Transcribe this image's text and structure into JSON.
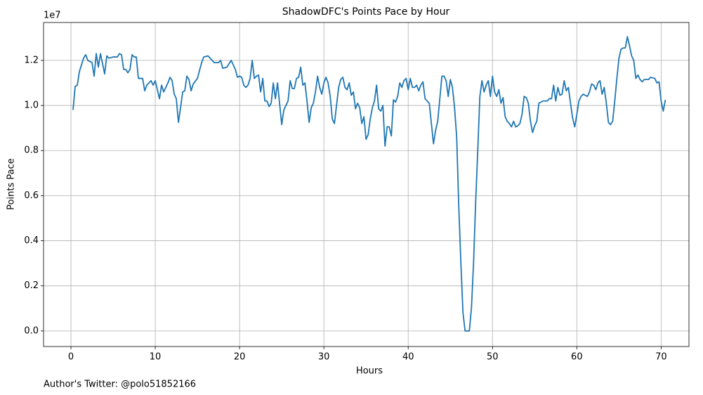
{
  "chart_data": {
    "type": "line",
    "title": "ShadowDFC's Points Pace by Hour",
    "xlabel": "Hours",
    "ylabel": "Points Pace",
    "y_offset_label": "1e7",
    "footnote": "Author's Twitter: @polo51852166",
    "color": "#1f77b4",
    "grid": true,
    "xlim": [
      -3.25,
      73.3
    ],
    "ylim": [
      -0.069,
      1.368
    ],
    "xticks": [
      0,
      10,
      20,
      30,
      40,
      50,
      60,
      70
    ],
    "yticks": [
      {
        "value": 0,
        "label": "0.0"
      },
      0.2,
      0.4,
      0.6,
      0.8,
      {
        "value": 1,
        "label": "1.0"
      },
      1.2
    ],
    "x": [
      0.25,
      0.5,
      0.75,
      1,
      1.5,
      1.75,
      2,
      2.5,
      2.75,
      3,
      3.25,
      3.5,
      4,
      4.25,
      4.5,
      5,
      5.5,
      5.75,
      6,
      6.25,
      6.5,
      6.75,
      7,
      7.25,
      7.5,
      7.75,
      8,
      8.5,
      8.75,
      9,
      9.5,
      9.75,
      10,
      10.5,
      10.75,
      11,
      11.5,
      11.75,
      12,
      12.25,
      12.5,
      12.75,
      13,
      13.25,
      13.5,
      13.75,
      14,
      14.25,
      14.5,
      15,
      15.5,
      15.75,
      16.25,
      16.75,
      17,
      17.5,
      17.75,
      18,
      18.5,
      19,
      19.5,
      19.75,
      20,
      20.25,
      20.5,
      20.75,
      21,
      21.25,
      21.5,
      21.75,
      22,
      22.25,
      22.5,
      22.75,
      23,
      23.25,
      23.5,
      23.75,
      24,
      24.25,
      24.5,
      25,
      25.25,
      25.5,
      25.75,
      26,
      26.25,
      26.5,
      26.75,
      27,
      27.25,
      27.5,
      27.75,
      28,
      28.25,
      28.5,
      28.75,
      29,
      29.25,
      29.5,
      29.75,
      30,
      30.25,
      30.5,
      30.75,
      31,
      31.25,
      31.5,
      31.75,
      32,
      32.25,
      32.5,
      32.75,
      33,
      33.25,
      33.5,
      33.75,
      34,
      34.25,
      34.5,
      34.75,
      35,
      35.25,
      35.5,
      35.75,
      36,
      36.25,
      36.5,
      36.75,
      37,
      37.25,
      37.5,
      37.75,
      38,
      38.25,
      38.5,
      38.75,
      39,
      39.25,
      39.5,
      39.75,
      40,
      40.25,
      40.5,
      40.75,
      41,
      41.25,
      41.5,
      41.75,
      42,
      42.5,
      42.75,
      43,
      43.25,
      43.5,
      43.75,
      44,
      44.25,
      44.5,
      44.75,
      45,
      45.25,
      45.5,
      45.75,
      46,
      46.25,
      46.5,
      46.75,
      47,
      47.25,
      47.5,
      47.75,
      48,
      48.25,
      48.5,
      48.75,
      49,
      49.25,
      49.5,
      49.75,
      50,
      50.25,
      50.5,
      50.75,
      51,
      51.25,
      51.5,
      51.75,
      52,
      52.25,
      52.5,
      52.75,
      53,
      53.25,
      53.5,
      53.75,
      54,
      54.25,
      54.5,
      54.75,
      55,
      55.25,
      55.5,
      55.75,
      56,
      56.5,
      56.75,
      57,
      57.25,
      57.5,
      57.75,
      58,
      58.25,
      58.5,
      58.75,
      59,
      59.25,
      59.5,
      59.75,
      60,
      60.25,
      60.5,
      60.75,
      61,
      61.25,
      61.5,
      61.75,
      62,
      62.25,
      62.5,
      62.75,
      63,
      63.25,
      63.5,
      63.75,
      64,
      64.25,
      64.5,
      64.75,
      65,
      65.25,
      65.5,
      65.75,
      66,
      66.25,
      66.5,
      66.75,
      67,
      67.25,
      67.5,
      67.75,
      68,
      68.5,
      68.75,
      69.25,
      69.5,
      69.75,
      70,
      70.25,
      70.5
    ],
    "values": [
      0.98,
      1.085,
      1.09,
      1.15,
      1.21,
      1.225,
      1.2,
      1.19,
      1.13,
      1.23,
      1.17,
      1.23,
      1.14,
      1.22,
      1.21,
      1.215,
      1.215,
      1.23,
      1.225,
      1.16,
      1.16,
      1.145,
      1.16,
      1.225,
      1.215,
      1.215,
      1.12,
      1.12,
      1.065,
      1.09,
      1.11,
      1.09,
      1.11,
      1.03,
      1.09,
      1.06,
      1.1,
      1.125,
      1.11,
      1.05,
      1.03,
      0.925,
      0.99,
      1.06,
      1.065,
      1.13,
      1.115,
      1.065,
      1.095,
      1.12,
      1.19,
      1.215,
      1.22,
      1.2,
      1.19,
      1.19,
      1.2,
      1.165,
      1.17,
      1.2,
      1.16,
      1.125,
      1.13,
      1.125,
      1.09,
      1.08,
      1.09,
      1.12,
      1.2,
      1.12,
      1.13,
      1.135,
      1.06,
      1.12,
      1.02,
      1.02,
      0.995,
      1.01,
      1.1,
      1.03,
      1.1,
      0.915,
      0.98,
      1.0,
      1.02,
      1.11,
      1.075,
      1.075,
      1.12,
      1.125,
      1.17,
      1.09,
      1.1,
      1.02,
      0.925,
      0.99,
      1.01,
      1.06,
      1.13,
      1.08,
      1.05,
      1.1,
      1.125,
      1.1,
      1.04,
      0.94,
      0.92,
      1.0,
      1.08,
      1.115,
      1.125,
      1.08,
      1.07,
      1.1,
      1.045,
      1.06,
      0.985,
      1.01,
      0.99,
      0.92,
      0.95,
      0.85,
      0.87,
      0.94,
      0.99,
      1.02,
      1.09,
      0.985,
      0.975,
      1.0,
      0.82,
      0.905,
      0.905,
      0.865,
      1.025,
      1.015,
      1.04,
      1.1,
      1.08,
      1.11,
      1.12,
      1.07,
      1.12,
      1.08,
      1.08,
      1.09,
      1.065,
      1.09,
      1.105,
      1.03,
      1.01,
      0.92,
      0.83,
      0.89,
      0.93,
      1.03,
      1.13,
      1.13,
      1.11,
      1.04,
      1.115,
      1.08,
      0.99,
      0.86,
      0.55,
      0.3,
      0.08,
      0.0,
      0.0,
      0.0,
      0.1,
      0.3,
      0.57,
      0.8,
      1.04,
      1.11,
      1.06,
      1.09,
      1.11,
      1.04,
      1.13,
      1.06,
      1.04,
      1.07,
      1.01,
      1.035,
      0.95,
      0.93,
      0.92,
      0.905,
      0.93,
      0.905,
      0.91,
      0.92,
      0.96,
      1.04,
      1.035,
      1.01,
      0.93,
      0.88,
      0.91,
      0.93,
      1.01,
      1.015,
      1.02,
      1.02,
      1.03,
      1.03,
      1.09,
      1.02,
      1.08,
      1.045,
      1.05,
      1.11,
      1.065,
      1.08,
      1.01,
      0.945,
      0.905,
      0.96,
      1.02,
      1.04,
      1.05,
      1.045,
      1.04,
      1.06,
      1.095,
      1.09,
      1.07,
      1.1,
      1.11,
      1.05,
      1.08,
      1.01,
      0.925,
      0.915,
      0.93,
      1.02,
      1.12,
      1.21,
      1.25,
      1.255,
      1.255,
      1.305,
      1.265,
      1.22,
      1.2,
      1.12,
      1.135,
      1.115,
      1.105,
      1.115,
      1.115,
      1.125,
      1.12,
      1.1,
      1.105,
      1.02,
      0.975,
      1.025
    ]
  }
}
